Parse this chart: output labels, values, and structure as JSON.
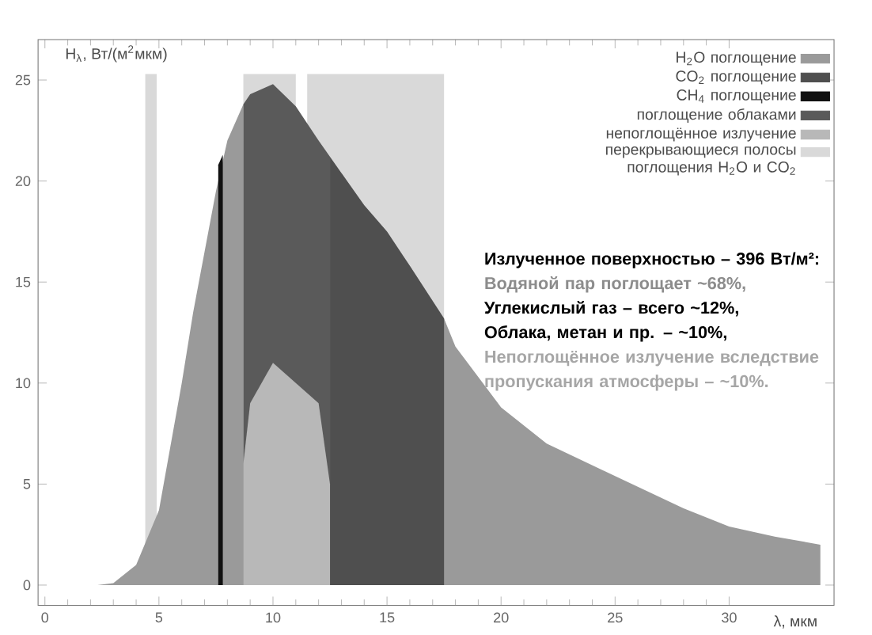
{
  "chart_data": {
    "type": "area",
    "ylabel": "H$_{λ}$, Вт/(м$^{2}$мкм)",
    "xlabel": "λ, мкм",
    "xlim": [
      -0.3,
      34.6
    ],
    "ylim": [
      -1,
      27
    ],
    "xticks": [
      0,
      5,
      10,
      15,
      20,
      25,
      30
    ],
    "yticks": [
      0,
      5,
      10,
      15,
      20,
      25
    ],
    "legend": "top right",
    "grid": false,
    "series": [
      {
        "name": "перекрывающиеся полосы поглощения H$_{2}$O и CO$_{2}$",
        "color": "#d9d9d9",
        "x": [
          4.4,
          4.9,
          6,
          8.7,
          11,
          11.2,
          11.5,
          17.5
        ],
        "values": [
          25.3,
          25.3,
          null,
          25.3,
          25.3,
          null,
          25.3,
          25.3
        ]
      },
      {
        "name": "H$_{2}$O поглощение",
        "color": "#9a9a9a",
        "x": [
          2.3,
          3,
          4,
          5,
          6,
          6.5,
          7,
          7.5,
          8,
          8.7,
          9,
          10,
          11,
          12,
          13,
          14,
          15,
          16,
          17.5,
          18,
          20,
          22,
          25,
          28,
          30,
          32,
          34
        ],
        "values": [
          0,
          0.1,
          1,
          3.7,
          10,
          13.5,
          16.5,
          19.5,
          22,
          23.8,
          null,
          null,
          null,
          null,
          20.4,
          18.8,
          17.5,
          15.8,
          13.2,
          11.8,
          8.8,
          7,
          5.4,
          3.8,
          2.9,
          2.4,
          2
        ]
      },
      {
        "name": "CO$_{2}$ поглощение",
        "color": "#4f4f4f",
        "x": [
          12.5,
          13,
          14,
          15,
          16,
          17.5
        ],
        "values": [
          21.2,
          20.4,
          18.8,
          17.5,
          15.8,
          13.2
        ]
      },
      {
        "name": "CH$_{4}$ поглощение",
        "color": "#111111",
        "x": [
          7.6,
          7.8
        ],
        "values": [
          20.8,
          21.3
        ]
      },
      {
        "name": "поглощение облаками",
        "color": "#5a5a5a",
        "x": [
          8.7,
          9,
          10,
          11,
          12,
          12.5
        ],
        "values": [
          23.8,
          24.3,
          24.8,
          23.7,
          22,
          21.2
        ]
      },
      {
        "name": "непоглощённое излучение",
        "color": "#b8b8b8",
        "x": [
          8.7,
          9,
          10,
          11,
          12,
          12.5
        ],
        "values": [
          6,
          9,
          11,
          10,
          9,
          5
        ]
      }
    ],
    "annotations": [
      "**Излученное поверхностью – 396 Вт/м²:**",
      "**Водяной пар поглощает ~68%,**",
      "**Углекислый газ – всего ~12%,**",
      "**Облака, метан и пр. – ~10%,**",
      "**Непоглощённое излучение вследствие пропускания атмосферы – ~10%.**"
    ]
  }
}
